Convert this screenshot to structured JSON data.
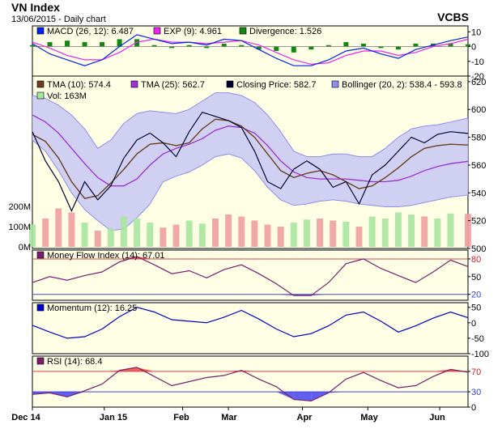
{
  "title": "VN Index",
  "subtitle": "13/06/2015 - Daily chart",
  "brand": "VCBS",
  "x_ticks": [
    "Dec 14",
    "Jan 15",
    "Feb",
    "Mar",
    "Apr",
    "May",
    "Jun"
  ],
  "colors": {
    "panel_bg": "#ffffe6",
    "band_fill": "#c8c8f5",
    "band_line": "#8f8fe8",
    "closing": "#000033",
    "tma10": "#6b3f1f",
    "tma25": "#9b30d9",
    "vol_up": "#a8e6a0",
    "vol_down": "#f0a0a0",
    "macd": "#0022ee",
    "ema": "#ee22ee",
    "divergence": "#118811",
    "mfi_line": "#7a1d6e",
    "momentum_line": "#0000cc",
    "rsi_line": "#7a1d6e",
    "overbought_fill": "#ee4444",
    "oversold_fill": "#4444ee",
    "ref_line_red": "#dd4444",
    "ref_line_blue": "#4444dd"
  },
  "chart_data": [
    {
      "type": "line",
      "panel": "macd",
      "legend": [
        {
          "label": "MACD (26, 12): 6.487",
          "color": "#0022ee",
          "icon": "square-swatch"
        },
        {
          "label": "EXP (9): 4.961",
          "color": "#ee22ee",
          "icon": "square-swatch"
        },
        {
          "label": "Divergence: 1.526",
          "color": "#118811",
          "icon": "square-swatch"
        }
      ],
      "y_ticks": [
        {
          "value": 10,
          "label": "10"
        },
        {
          "value": 0,
          "label": "0"
        },
        {
          "value": -10,
          "label": "-10"
        },
        {
          "value": -20,
          "label": "-20"
        }
      ],
      "ylim": [
        -20,
        14
      ],
      "series": [
        {
          "name": "MACD (26, 12)",
          "key": "macd",
          "x": [
            0,
            0.04,
            0.08,
            0.12,
            0.16,
            0.2,
            0.24,
            0.28,
            0.32,
            0.36,
            0.4,
            0.44,
            0.48,
            0.52,
            0.56,
            0.6,
            0.64,
            0.68,
            0.72,
            0.76,
            0.8,
            0.84,
            0.88,
            0.92,
            0.96,
            1
          ],
          "values": [
            2,
            -5,
            -9,
            -13,
            -9,
            0,
            8,
            5,
            2,
            3,
            1,
            5,
            4,
            -2,
            -8,
            -13,
            -13,
            -9,
            -3,
            -1,
            -5,
            -8,
            -2,
            1,
            4,
            6.5
          ]
        },
        {
          "name": "EXP (9)",
          "key": "ema",
          "x": [
            0,
            0.04,
            0.08,
            0.12,
            0.16,
            0.2,
            0.24,
            0.28,
            0.32,
            0.36,
            0.4,
            0.44,
            0.48,
            0.52,
            0.56,
            0.6,
            0.64,
            0.68,
            0.72,
            0.76,
            0.8,
            0.84,
            0.88,
            0.92,
            0.96,
            1
          ],
          "values": [
            3,
            -1,
            -6,
            -9,
            -9,
            -4,
            3,
            5,
            3,
            3,
            2,
            3,
            4,
            1,
            -4,
            -9,
            -12,
            -11,
            -6,
            -3,
            -3,
            -6,
            -4,
            0,
            2,
            4.961
          ]
        },
        {
          "name": "Divergence",
          "key": "divergence",
          "type": "bar",
          "x": [
            0,
            0.04,
            0.08,
            0.12,
            0.16,
            0.2,
            0.24,
            0.28,
            0.32,
            0.36,
            0.4,
            0.44,
            0.48,
            0.52,
            0.56,
            0.6,
            0.64,
            0.68,
            0.72,
            0.76,
            0.8,
            0.84,
            0.88,
            0.92,
            0.96,
            1
          ],
          "values": [
            1,
            3,
            4,
            3,
            3,
            5,
            5,
            1,
            -1,
            1,
            -1,
            2,
            1,
            -2,
            -3,
            -4,
            -2,
            1,
            3,
            2,
            -1,
            -2,
            2,
            2,
            2,
            1.526
          ]
        }
      ]
    },
    {
      "type": "line",
      "panel": "price",
      "legend": [
        {
          "label": "TMA (10): 574.4",
          "color": "#6b3f1f",
          "icon": "square-swatch"
        },
        {
          "label": "TMA (25): 562.7",
          "color": "#9b30d9",
          "icon": "square-swatch"
        },
        {
          "label": "Closing Price: 582.7",
          "color": "#000033",
          "icon": "square-swatch"
        },
        {
          "label": "Bollinger (20, 2): 538.4 - 593.8",
          "color": "#8f8fe8",
          "icon": "square-swatch"
        },
        {
          "label": "Vol: 163M",
          "color": "#a8e6a0",
          "icon": "square-swatch"
        }
      ],
      "y_ticks": [
        {
          "value": 620,
          "label": "620"
        },
        {
          "value": 600,
          "label": "600"
        },
        {
          "value": 580,
          "label": "580"
        },
        {
          "value": 560,
          "label": "560"
        },
        {
          "value": 540,
          "label": "540"
        },
        {
          "value": 520,
          "label": "520"
        },
        {
          "value": 500,
          "label": "500"
        }
      ],
      "ylim": [
        500,
        624
      ],
      "volume_ticks": [
        {
          "value": 200,
          "label": "200M"
        },
        {
          "value": 100,
          "label": "100M"
        },
        {
          "value": 0,
          "label": "0M"
        }
      ],
      "volume_unit": "M",
      "series": [
        {
          "name": "Closing Price",
          "key": "close",
          "x": [
            0,
            0.03,
            0.06,
            0.09,
            0.12,
            0.15,
            0.18,
            0.21,
            0.24,
            0.27,
            0.3,
            0.33,
            0.36,
            0.39,
            0.42,
            0.45,
            0.48,
            0.51,
            0.54,
            0.57,
            0.6,
            0.63,
            0.66,
            0.69,
            0.72,
            0.75,
            0.78,
            0.81,
            0.84,
            0.87,
            0.9,
            0.93,
            0.96,
            1
          ],
          "values": [
            584,
            563,
            548,
            527,
            548,
            535,
            545,
            565,
            578,
            583,
            576,
            566,
            584,
            598,
            595,
            592,
            587,
            570,
            548,
            543,
            557,
            563,
            557,
            544,
            548,
            532,
            553,
            560,
            570,
            580,
            576,
            582,
            584,
            582.7
          ]
        },
        {
          "name": "TMA (10)",
          "key": "tma10",
          "x": [
            0,
            0.03,
            0.06,
            0.09,
            0.12,
            0.15,
            0.18,
            0.21,
            0.24,
            0.27,
            0.3,
            0.33,
            0.36,
            0.39,
            0.42,
            0.45,
            0.48,
            0.51,
            0.54,
            0.57,
            0.6,
            0.63,
            0.66,
            0.69,
            0.72,
            0.75,
            0.78,
            0.81,
            0.84,
            0.87,
            0.9,
            0.93,
            0.96,
            1
          ],
          "values": [
            582,
            577,
            565,
            548,
            536,
            538,
            547,
            557,
            568,
            575,
            576,
            574,
            576,
            586,
            593,
            592,
            588,
            580,
            568,
            556,
            551,
            554,
            556,
            553,
            548,
            543,
            545,
            551,
            558,
            566,
            572,
            574,
            575,
            574.4
          ]
        },
        {
          "name": "TMA (25)",
          "key": "tma25",
          "x": [
            0,
            0.03,
            0.06,
            0.09,
            0.12,
            0.15,
            0.18,
            0.21,
            0.24,
            0.27,
            0.3,
            0.33,
            0.36,
            0.39,
            0.42,
            0.45,
            0.48,
            0.51,
            0.54,
            0.57,
            0.6,
            0.63,
            0.66,
            0.69,
            0.72,
            0.75,
            0.78,
            0.81,
            0.84,
            0.87,
            0.9,
            0.93,
            0.96,
            1
          ],
          "values": [
            596,
            591,
            583,
            572,
            561,
            551,
            545,
            545,
            550,
            560,
            568,
            572,
            575,
            579,
            585,
            588,
            587,
            583,
            574,
            563,
            555,
            551,
            550,
            550,
            550,
            549,
            548,
            548,
            549,
            552,
            556,
            559,
            561,
            562.7
          ]
        },
        {
          "name": "Bollinger upper",
          "key": "bb_upper",
          "x": [
            0,
            0.03,
            0.06,
            0.09,
            0.12,
            0.15,
            0.18,
            0.21,
            0.24,
            0.27,
            0.3,
            0.33,
            0.36,
            0.39,
            0.42,
            0.45,
            0.48,
            0.51,
            0.54,
            0.57,
            0.6,
            0.63,
            0.66,
            0.69,
            0.72,
            0.75,
            0.78,
            0.81,
            0.84,
            0.87,
            0.9,
            0.93,
            0.96,
            1
          ],
          "values": [
            610,
            608,
            603,
            596,
            586,
            572,
            578,
            590,
            597,
            599,
            598,
            597,
            600,
            606,
            612,
            612,
            610,
            605,
            596,
            584,
            570,
            566,
            566,
            568,
            568,
            566,
            566,
            572,
            580,
            586,
            588,
            589,
            591,
            593.8
          ]
        },
        {
          "name": "Bollinger lower",
          "key": "bb_lower",
          "x": [
            0,
            0.03,
            0.06,
            0.09,
            0.12,
            0.15,
            0.18,
            0.21,
            0.24,
            0.27,
            0.3,
            0.33,
            0.36,
            0.39,
            0.42,
            0.45,
            0.48,
            0.51,
            0.54,
            0.57,
            0.6,
            0.63,
            0.66,
            0.69,
            0.72,
            0.75,
            0.78,
            0.81,
            0.84,
            0.87,
            0.9,
            0.93,
            0.96,
            1
          ],
          "values": [
            578,
            570,
            556,
            540,
            528,
            520,
            513,
            514,
            522,
            532,
            548,
            552,
            555,
            560,
            566,
            568,
            565,
            556,
            544,
            535,
            531,
            532,
            534,
            535,
            534,
            532,
            531,
            530,
            530,
            531,
            533,
            535,
            537,
            538.4
          ]
        },
        {
          "name": "Vol",
          "key": "volume",
          "type": "bar",
          "x": [
            0,
            0.03,
            0.06,
            0.09,
            0.12,
            0.15,
            0.18,
            0.21,
            0.24,
            0.27,
            0.3,
            0.33,
            0.36,
            0.39,
            0.42,
            0.45,
            0.48,
            0.51,
            0.54,
            0.57,
            0.6,
            0.63,
            0.66,
            0.69,
            0.72,
            0.75,
            0.78,
            0.81,
            0.84,
            0.87,
            0.9,
            0.93,
            0.96,
            1
          ],
          "values": [
            110,
            140,
            190,
            170,
            120,
            80,
            90,
            150,
            140,
            120,
            95,
            110,
            130,
            115,
            140,
            160,
            150,
            130,
            110,
            100,
            120,
            135,
            140,
            130,
            125,
            100,
            150,
            140,
            170,
            160,
            150,
            140,
            165,
            163
          ],
          "up": [
            true,
            false,
            false,
            false,
            true,
            false,
            true,
            true,
            true,
            true,
            false,
            false,
            true,
            true,
            false,
            false,
            false,
            false,
            false,
            false,
            true,
            true,
            false,
            false,
            true,
            false,
            true,
            true,
            true,
            true,
            false,
            true,
            true,
            false
          ]
        }
      ]
    },
    {
      "type": "line",
      "panel": "mfi",
      "legend": [
        {
          "label": "Money Flow Index (14): 67.01",
          "color": "#7a1d6e",
          "icon": "square-swatch"
        }
      ],
      "y_ticks": [
        {
          "value": 80,
          "label": "80",
          "style": "red"
        },
        {
          "value": 50,
          "label": "50"
        },
        {
          "value": 20,
          "label": "20",
          "style": "blue"
        }
      ],
      "reference_lines": [
        {
          "value": 80,
          "color": "#dd4444"
        },
        {
          "value": 20,
          "color": "#4444dd"
        }
      ],
      "ylim": [
        10,
        95
      ],
      "series": [
        {
          "name": "Money Flow Index (14)",
          "key": "mfi",
          "x": [
            0,
            0.04,
            0.08,
            0.12,
            0.16,
            0.2,
            0.24,
            0.28,
            0.32,
            0.36,
            0.4,
            0.44,
            0.48,
            0.52,
            0.56,
            0.6,
            0.64,
            0.68,
            0.72,
            0.76,
            0.8,
            0.84,
            0.88,
            0.92,
            0.96,
            1
          ],
          "values": [
            40,
            50,
            44,
            52,
            58,
            75,
            84,
            70,
            55,
            60,
            48,
            62,
            70,
            55,
            38,
            18,
            18,
            40,
            72,
            80,
            64,
            52,
            40,
            58,
            78,
            67.01
          ]
        }
      ]
    },
    {
      "type": "line",
      "panel": "momentum",
      "legend": [
        {
          "label": "Momentum (12): 16.25",
          "color": "#0000cc",
          "icon": "square-swatch"
        }
      ],
      "y_ticks": [
        {
          "value": 50,
          "label": "50"
        },
        {
          "value": 0,
          "label": "0"
        },
        {
          "value": -50,
          "label": "-50"
        },
        {
          "value": -100,
          "label": "-100"
        }
      ],
      "ylim": [
        -100,
        65
      ],
      "series": [
        {
          "name": "Momentum (12)",
          "key": "momentum",
          "x": [
            0,
            0.04,
            0.08,
            0.12,
            0.16,
            0.2,
            0.24,
            0.28,
            0.32,
            0.36,
            0.4,
            0.44,
            0.48,
            0.52,
            0.56,
            0.6,
            0.64,
            0.68,
            0.72,
            0.76,
            0.8,
            0.84,
            0.88,
            0.92,
            0.96,
            1
          ],
          "values": [
            -8,
            -30,
            -50,
            -45,
            -20,
            20,
            50,
            35,
            10,
            5,
            0,
            18,
            40,
            12,
            -20,
            -45,
            -35,
            -10,
            25,
            35,
            5,
            -30,
            -10,
            15,
            35,
            16.25
          ]
        }
      ]
    },
    {
      "type": "line",
      "panel": "rsi",
      "legend": [
        {
          "label": "RSI (14): 68.4",
          "color": "#7a1d6e",
          "icon": "square-swatch"
        }
      ],
      "y_ticks": [
        {
          "value": 70,
          "label": "70",
          "style": "red"
        },
        {
          "value": 30,
          "label": "30",
          "style": "blue"
        },
        {
          "value": 0,
          "label": "0"
        }
      ],
      "reference_lines": [
        {
          "value": 70,
          "color": "#dd4444"
        },
        {
          "value": 30,
          "color": "#4444dd"
        }
      ],
      "ylim": [
        0,
        100
      ],
      "series": [
        {
          "name": "RSI (14)",
          "key": "rsi",
          "x": [
            0,
            0.04,
            0.08,
            0.12,
            0.16,
            0.2,
            0.24,
            0.28,
            0.32,
            0.36,
            0.4,
            0.44,
            0.48,
            0.52,
            0.56,
            0.6,
            0.64,
            0.68,
            0.72,
            0.76,
            0.8,
            0.84,
            0.88,
            0.92,
            0.96,
            1
          ],
          "values": [
            25,
            28,
            20,
            32,
            45,
            72,
            78,
            60,
            42,
            50,
            58,
            62,
            72,
            55,
            40,
            15,
            12,
            28,
            55,
            68,
            52,
            38,
            42,
            60,
            74,
            68.4
          ]
        }
      ]
    }
  ]
}
